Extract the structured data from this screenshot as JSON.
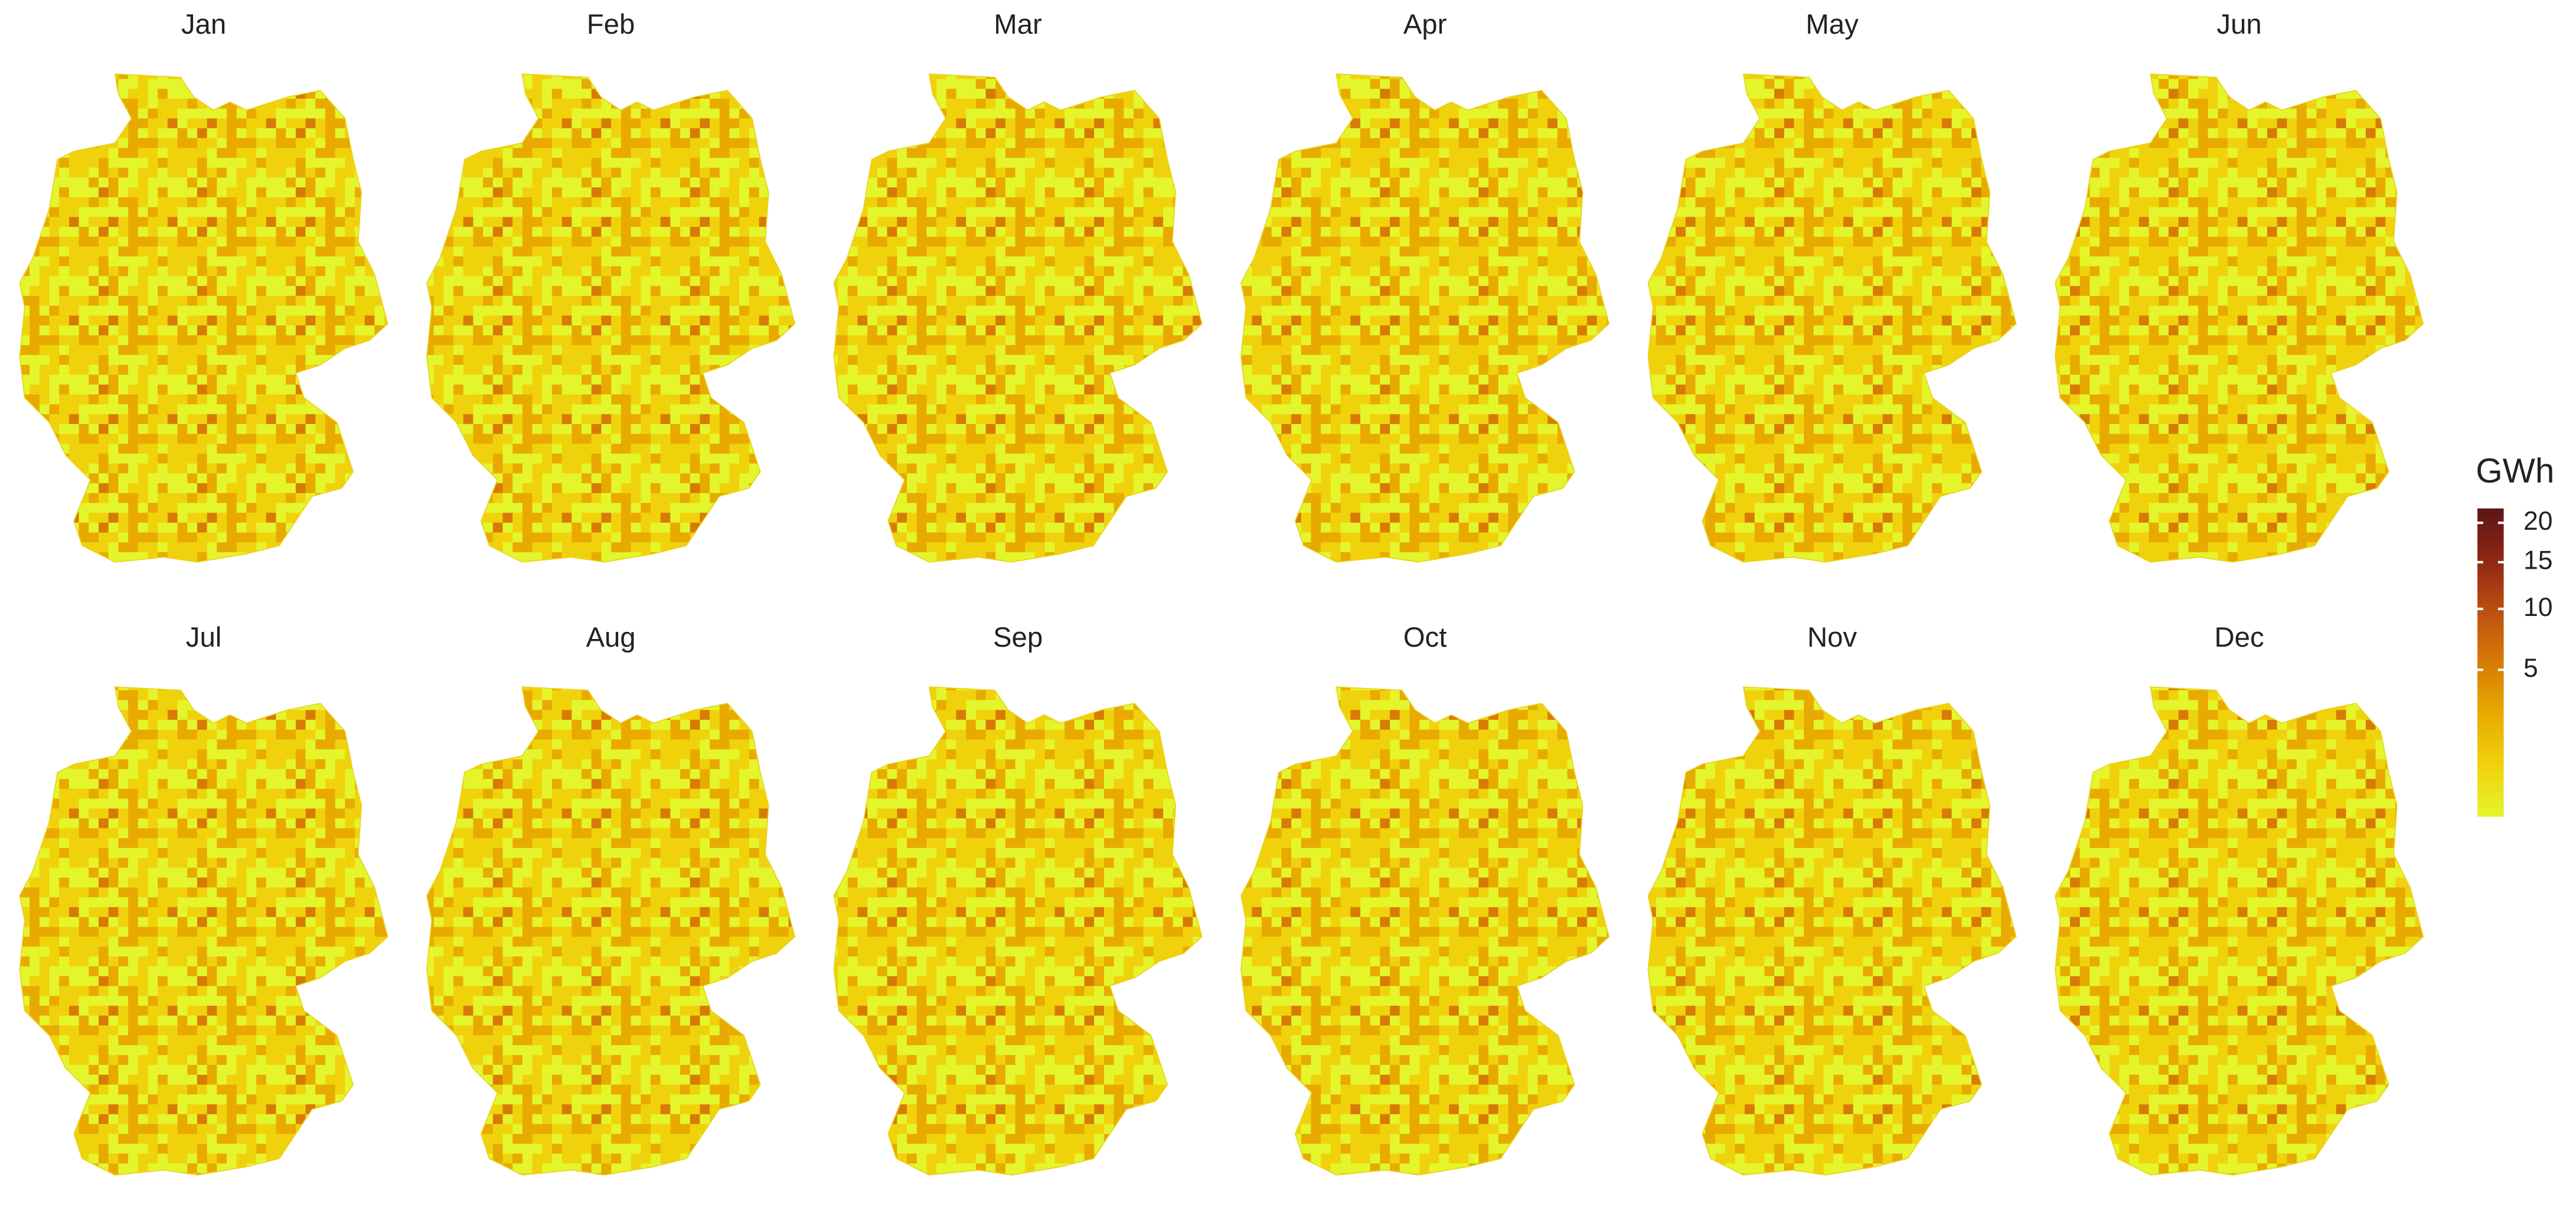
{
  "chart_data": {
    "type": "choropleth",
    "panels": [
      "Jan",
      "Feb",
      "Mar",
      "Apr",
      "May",
      "Jun",
      "Jul",
      "Aug",
      "Sep",
      "Oct",
      "Nov",
      "Dec"
    ],
    "legend": {
      "title": "GWh",
      "lim": [
        0,
        22
      ],
      "ticks": [
        5,
        10,
        15,
        20
      ],
      "scale": "sqrt",
      "colors": [
        "#e4f52c",
        "#f0d20c",
        "#e8aa00",
        "#d77b05",
        "#bd4f10",
        "#8f2615",
        "#5c1517"
      ]
    }
  }
}
